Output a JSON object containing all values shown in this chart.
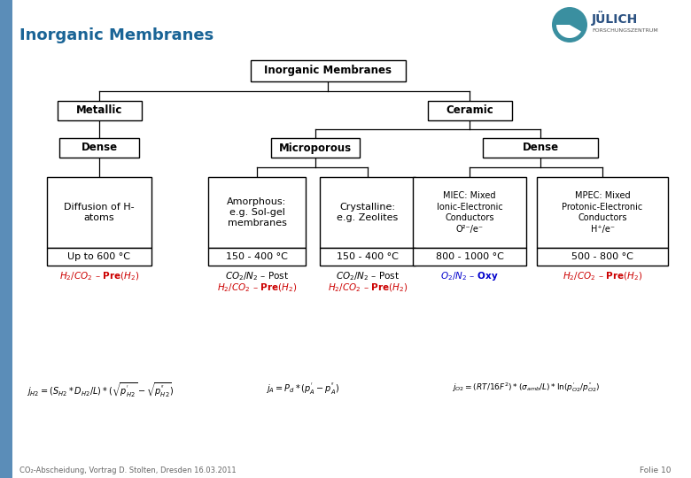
{
  "page_title": "Inorganic Membranes",
  "background_color": "#ffffff",
  "left_bar_color": "#5b8db8",
  "title_color": "#1a6496",
  "red_color": "#cc0000",
  "blue_color": "#0000cc",
  "footer_text": "CO₂-Abscheidung, Vortrag D. Stolten, Dresden 16.03.2011",
  "folio_text": "Folie 10"
}
